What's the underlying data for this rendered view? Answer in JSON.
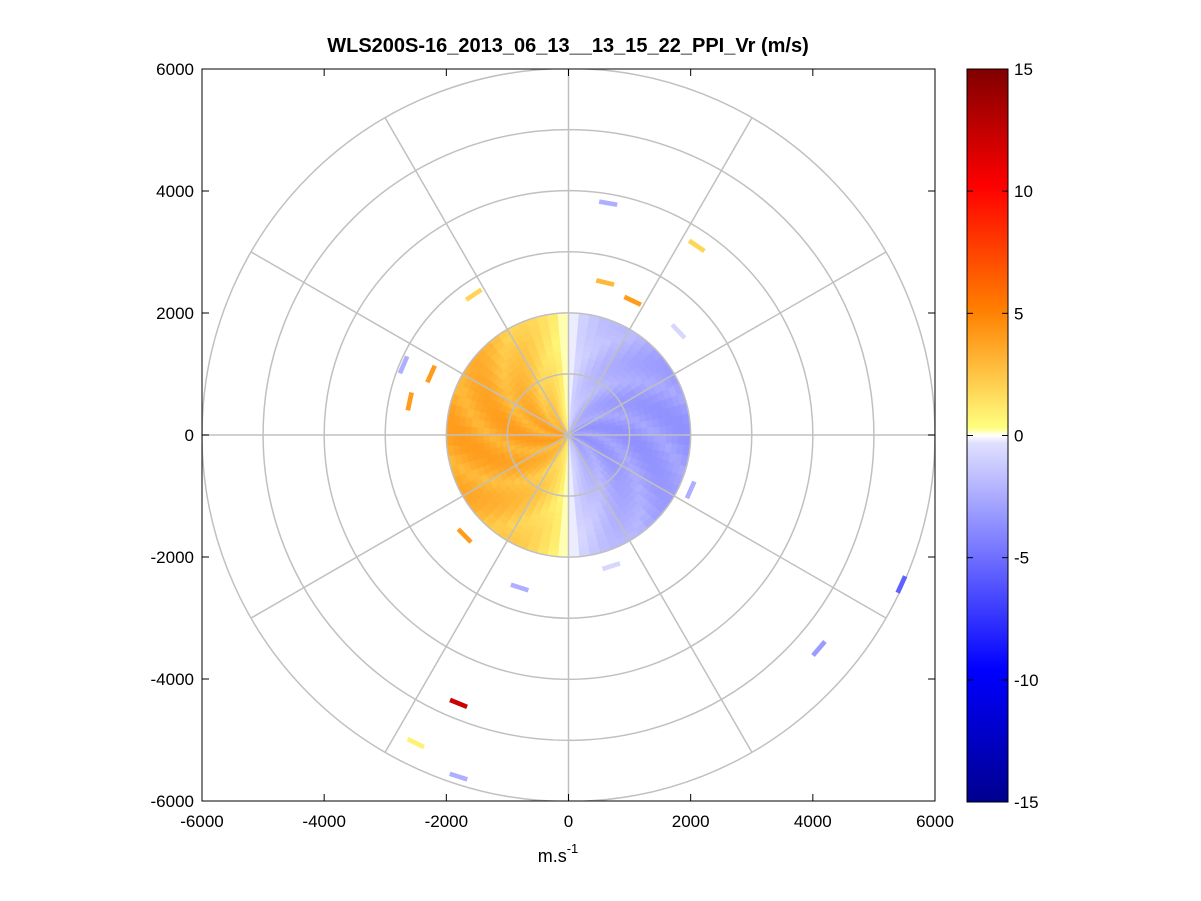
{
  "chart_data": {
    "type": "heatmap",
    "subtype": "polar-ppi",
    "title": "WLS200S-16_2013_06_13__13_15_22_PPI_Vr (m/s)",
    "xlabel": "m.s",
    "xlabel_superscript": "-1",
    "ylabel": "",
    "xlim": [
      -6000,
      6000
    ],
    "ylim": [
      -6000,
      6000
    ],
    "x_ticks": [
      "-6000",
      "-4000",
      "-2000",
      "0",
      "2000",
      "4000",
      "6000"
    ],
    "y_ticks": [
      "6000",
      "4000",
      "2000",
      "0",
      "-2000",
      "-4000",
      "-6000"
    ],
    "x_tick_values": [
      -6000,
      -4000,
      -2000,
      0,
      2000,
      4000,
      6000
    ],
    "y_tick_values": [
      6000,
      4000,
      2000,
      0,
      -2000,
      -4000,
      -6000
    ],
    "polar_grid": {
      "ring_radii": [
        1000,
        2000,
        3000,
        4000,
        5000,
        6000
      ],
      "spoke_angles_deg": [
        0,
        30,
        60,
        90,
        120,
        150,
        180,
        210,
        240,
        270,
        300,
        330
      ]
    },
    "colorbar": {
      "min": -15,
      "max": 15,
      "ticks": [
        "15",
        "10",
        "5",
        "0",
        "-5",
        "-10",
        "-15"
      ],
      "tick_values": [
        15,
        10,
        5,
        0,
        -5,
        -10,
        -15
      ],
      "colors": {
        "min": "#00008f",
        "neg_mid": "#0000ff",
        "neg_low": "#e0e0ff",
        "zero": "#ffffff",
        "pos_low": "#ffff80",
        "pos_mid": "#ff8000",
        "max": "#800000"
      }
    },
    "dense_region": {
      "max_range_m": 2000,
      "west_half_velocity_ms": 3.5,
      "east_half_velocity_ms": -4
    },
    "sparse_returns": [
      {
        "x": 650,
        "y": 3800,
        "v": -3
      },
      {
        "x": 2100,
        "y": 3100,
        "v": 2
      },
      {
        "x": 600,
        "y": 2500,
        "v": 3
      },
      {
        "x": 1050,
        "y": 2200,
        "v": 4
      },
      {
        "x": 1800,
        "y": 1700,
        "v": -1
      },
      {
        "x": -1550,
        "y": 2300,
        "v": 2
      },
      {
        "x": -2700,
        "y": 1150,
        "v": -3
      },
      {
        "x": -2250,
        "y": 1000,
        "v": 4
      },
      {
        "x": -2600,
        "y": 550,
        "v": 4
      },
      {
        "x": -1700,
        "y": -1650,
        "v": 4
      },
      {
        "x": -800,
        "y": -2500,
        "v": -3
      },
      {
        "x": 700,
        "y": -2150,
        "v": -1
      },
      {
        "x": 2000,
        "y": -900,
        "v": -3
      },
      {
        "x": 5450,
        "y": -2450,
        "v": -7
      },
      {
        "x": 4100,
        "y": -3500,
        "v": -4
      },
      {
        "x": -1800,
        "y": -4400,
        "v": 12
      },
      {
        "x": -2500,
        "y": -5050,
        "v": 1
      },
      {
        "x": -1800,
        "y": -5600,
        "v": -3
      }
    ]
  }
}
